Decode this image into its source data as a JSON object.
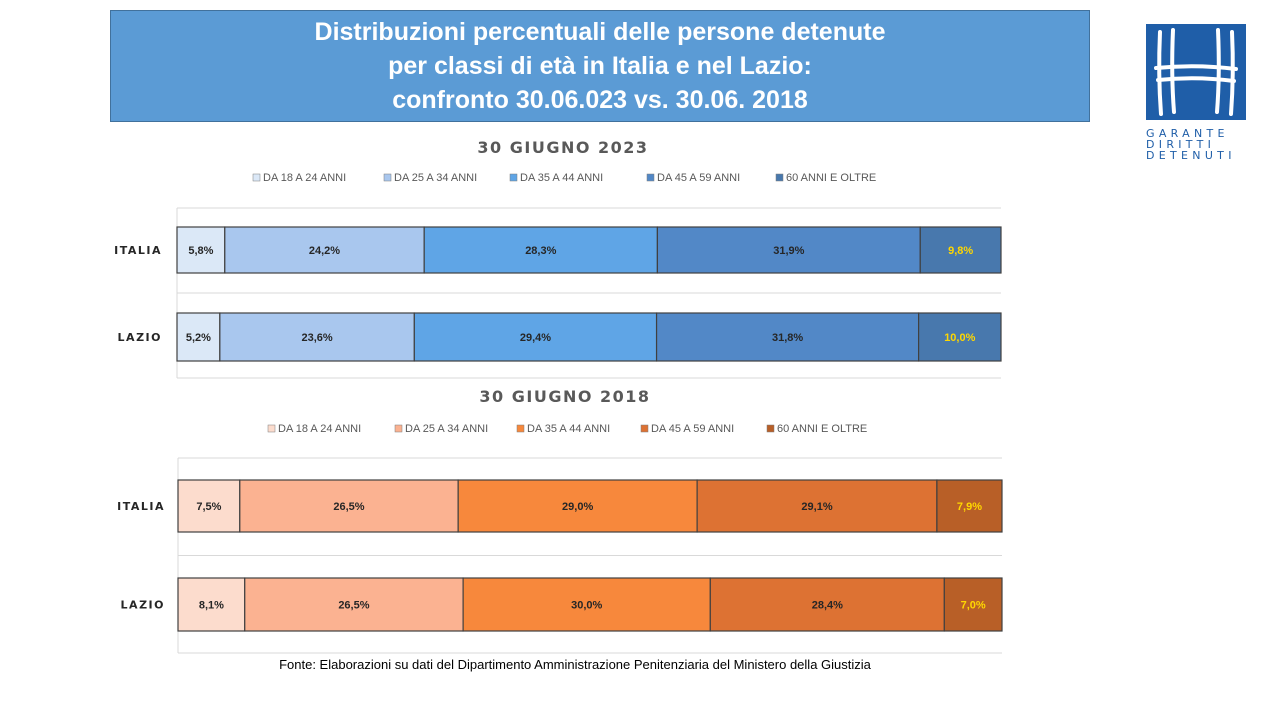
{
  "header": {
    "title_lines": [
      "Distribuzioni percentuali delle persone detenute",
      "per classi di età in Italia e nel Lazio:",
      "confronto 30.06.023 vs. 30.06. 2018"
    ]
  },
  "logo": {
    "lines": [
      "GARANTE",
      "DIRITTI",
      "DETENUTI"
    ],
    "color": "#1f5ea8",
    "icon": "garante-logo-icon"
  },
  "source": "Fonte:  Elaborazioni su dati del Dipartimento  Amministrazione  Penitenziaria del Ministero della Giustizia",
  "chart_data": [
    {
      "type": "bar",
      "orientation": "horizontal",
      "stacked": "percent",
      "title": "30 GIUGNO 2023",
      "categories": [
        "ITALIA",
        "LAZIO"
      ],
      "legend_position": "top",
      "series": [
        {
          "name": "DA 18 A 24 ANNI",
          "values": [
            5.8,
            5.2
          ],
          "labels": [
            "5,8%",
            "5,2%"
          ],
          "color": "#dbe8f7",
          "label_color": "#262626"
        },
        {
          "name": "DA 25 A 34 ANNI",
          "values": [
            24.2,
            23.6
          ],
          "labels": [
            "24,2%",
            "23,6%"
          ],
          "color": "#a9c7ee",
          "label_color": "#262626"
        },
        {
          "name": "DA 35 A  44 ANNI",
          "values": [
            28.3,
            29.4
          ],
          "labels": [
            "28,3%",
            "29,4%"
          ],
          "color": "#5fa5e6",
          "label_color": "#262626"
        },
        {
          "name": "DA 45 A 59 ANNI",
          "values": [
            31.9,
            31.8
          ],
          "labels": [
            "31,9%",
            "31,8%"
          ],
          "color": "#5288c7",
          "label_color": "#262626"
        },
        {
          "name": "60 ANNI E OLTRE",
          "values": [
            9.8,
            10.0
          ],
          "labels": [
            "9,8%",
            "10,0%"
          ],
          "color": "#4878ad",
          "label_color": "#ffd700"
        }
      ]
    },
    {
      "type": "bar",
      "orientation": "horizontal",
      "stacked": "percent",
      "title": "30 GIUGNO 2018",
      "categories": [
        "ITALIA",
        "LAZIO"
      ],
      "legend_position": "top",
      "series": [
        {
          "name": "DA 18 A 24 ANNI",
          "values": [
            7.5,
            8.1
          ],
          "labels": [
            "7,5%",
            "8,1%"
          ],
          "color": "#fcdccd",
          "label_color": "#262626"
        },
        {
          "name": "DA 25 A 34 ANNI",
          "values": [
            26.5,
            26.5
          ],
          "labels": [
            "26,5%",
            "26,5%"
          ],
          "color": "#fbb291",
          "label_color": "#262626"
        },
        {
          "name": "DA 35 A  44 ANNI",
          "values": [
            29.0,
            30.0
          ],
          "labels": [
            "29,0%",
            "30,0%"
          ],
          "color": "#f7883c",
          "label_color": "#262626"
        },
        {
          "name": "DA 45 A 59 ANNI",
          "values": [
            29.1,
            28.4
          ],
          "labels": [
            "29,1%",
            "28,4%"
          ],
          "color": "#dd7233",
          "label_color": "#262626"
        },
        {
          "name": "60 ANNI E OLTRE",
          "values": [
            7.9,
            7.0
          ],
          "labels": [
            "7,9%",
            "7,0%"
          ],
          "color": "#b85f27",
          "label_color": "#ffd700"
        }
      ]
    }
  ]
}
